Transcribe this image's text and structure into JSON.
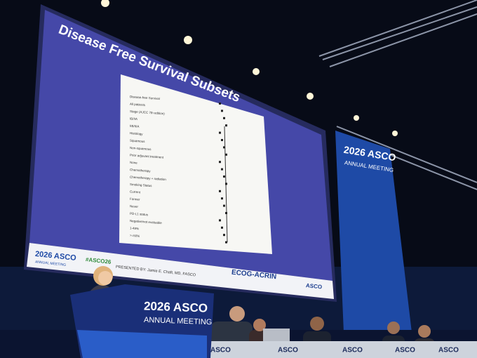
{
  "slide": {
    "title": "Disease Free Survival Subsets",
    "rows": [
      "Disease-free Survival",
      "All patients",
      "Stage (AJCC 7th edition)",
      "IB/IIA",
      "IIB/IIIA",
      "Histology",
      "Squamous",
      "Non-squamous",
      "Prior adjuvant treatment",
      "None",
      "Chemotherapy",
      "Chemotherapy + radiation",
      "Smoking Status",
      "Current",
      "Former",
      "Never",
      "PD-L1 status",
      "Negative/not evaluable",
      "1-49%",
      ">=50%"
    ],
    "logo": "2026 ASCO",
    "logo_sub": "ANNUAL MEETING",
    "hashtag": "#ASCO26",
    "presenter": "PRESENTED BY: Jamie E. Chaft, MD, FASCO",
    "partner": "ECOG-ACRIN",
    "corner_logo": "ASCO"
  },
  "banner": {
    "logo": "2026 ASCO",
    "sub": "ANNUAL MEETING"
  },
  "podium": {
    "logo": "2026 ASCO",
    "sub": "ANNUAL MEETING"
  },
  "table_labels": [
    "ASCO",
    "ASCO",
    "ASCO",
    "ASCO",
    "ASCO"
  ]
}
